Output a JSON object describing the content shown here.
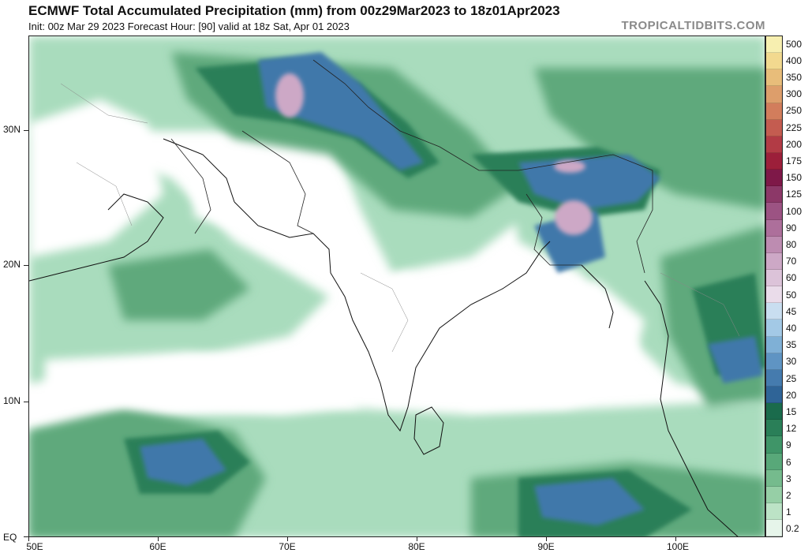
{
  "header": {
    "title": "ECMWF Total Accumulated Precipitation (mm) from 00z29Mar2023 to 18z01Apr2023",
    "subtitle": "Init: 00z Mar 29 2023   Forecast Hour: [90]   valid at 18z Sat, Apr 01 2023",
    "watermark": "TROPICALTIDBITS.COM"
  },
  "axes": {
    "y_labels": [
      "30N",
      "20N",
      "10N",
      "EQ"
    ],
    "x_labels": [
      "50E",
      "60E",
      "70E",
      "80E",
      "90E",
      "100E"
    ]
  },
  "colorbar": {
    "levels": [
      "500",
      "400",
      "350",
      "300",
      "250",
      "225",
      "200",
      "175",
      "150",
      "125",
      "100",
      "90",
      "80",
      "70",
      "60",
      "50",
      "45",
      "40",
      "35",
      "30",
      "25",
      "20",
      "15",
      "12",
      "9",
      "6",
      "3",
      "2",
      "1",
      "0.2"
    ],
    "colors": [
      "#f7efb0",
      "#f2d98f",
      "#e8bd7a",
      "#dd9e6b",
      "#d27d5c",
      "#c45c50",
      "#b23b45",
      "#9c1f3a",
      "#7e1848",
      "#8c3868",
      "#9c5383",
      "#ad6f9b",
      "#bd8cb1",
      "#cda8c6",
      "#dcc3d9",
      "#eadcea",
      "#c9def0",
      "#a3c9e6",
      "#7fb0d6",
      "#5f94c3",
      "#457bae",
      "#2f6497",
      "#1a6b4c",
      "#2a7f58",
      "#3f9568",
      "#58a879",
      "#75bb8d",
      "#96cfa6",
      "#bce3c6",
      "#e6f5ea"
    ]
  }
}
